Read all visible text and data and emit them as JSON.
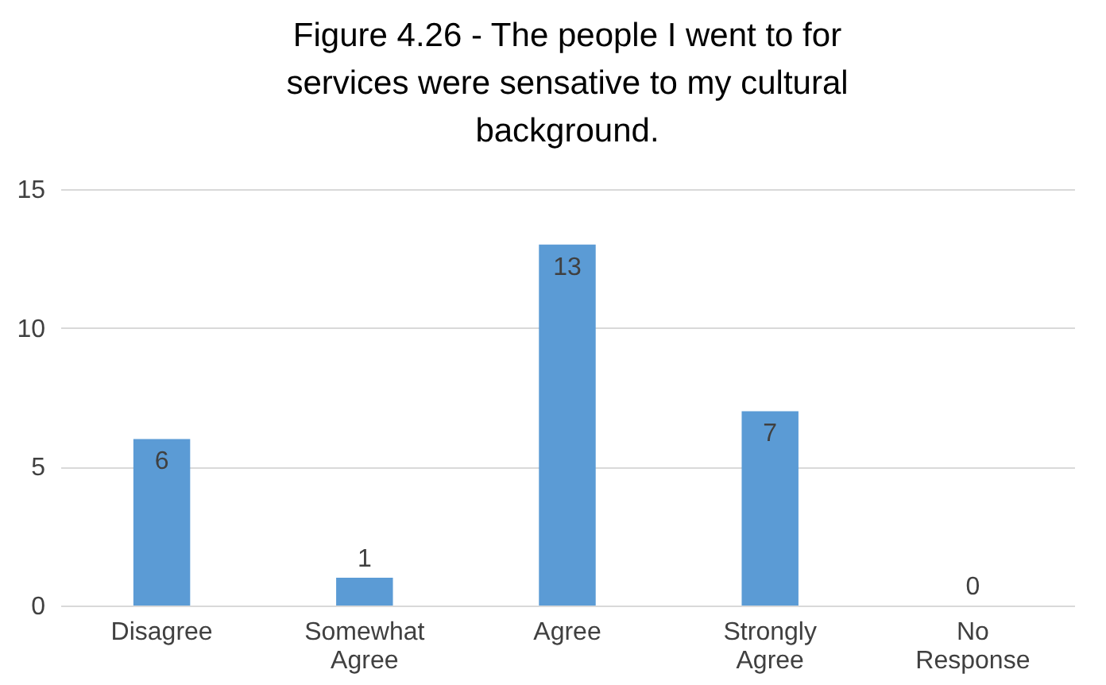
{
  "chart_data": {
    "type": "bar",
    "title": "Figure 4.26 - The people I went to for services were sensative to my cultural background.",
    "categories": [
      "Disagree",
      "Somewhat Agree",
      "Agree",
      "Strongly Agree",
      "No Response"
    ],
    "values": [
      6,
      1,
      13,
      7,
      0
    ],
    "color": "#5b9bd5",
    "ylim": [
      0,
      15
    ],
    "yticks": [
      0,
      5,
      10,
      15
    ],
    "grid": "y",
    "data_labels": true
  }
}
